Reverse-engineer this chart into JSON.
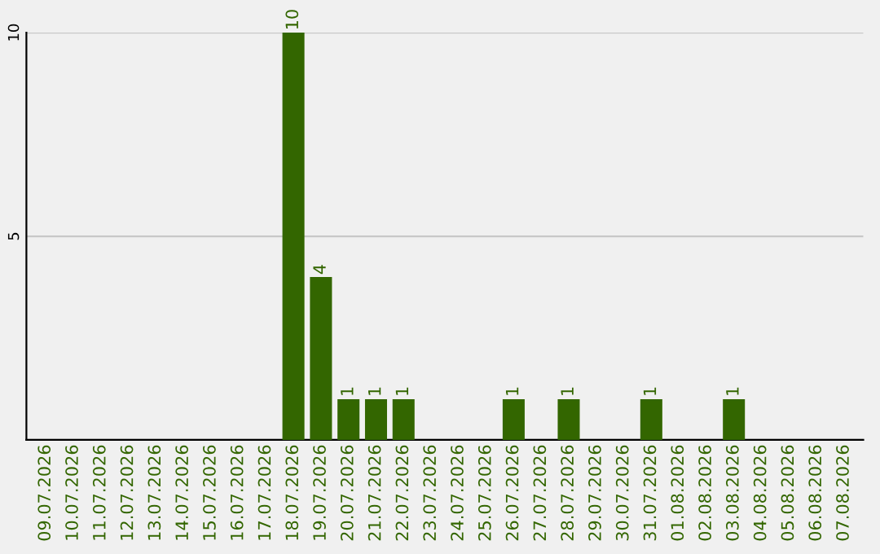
{
  "chart_data": {
    "type": "bar",
    "categories": [
      "09.07.2026",
      "10.07.2026",
      "11.07.2026",
      "12.07.2026",
      "13.07.2026",
      "14.07.2026",
      "15.07.2026",
      "16.07.2026",
      "17.07.2026",
      "18.07.2026",
      "19.07.2026",
      "20.07.2026",
      "21.07.2026",
      "22.07.2026",
      "23.07.2026",
      "24.07.2026",
      "25.07.2026",
      "26.07.2026",
      "27.07.2026",
      "28.07.2026",
      "29.07.2026",
      "30.07.2026",
      "31.07.2026",
      "01.08.2026",
      "02.08.2026",
      "03.08.2026",
      "04.08.2026",
      "05.08.2026",
      "06.08.2026",
      "07.08.2026"
    ],
    "values": [
      0,
      0,
      0,
      0,
      0,
      0,
      0,
      0,
      0,
      10,
      4,
      1,
      1,
      1,
      0,
      0,
      0,
      1,
      0,
      1,
      0,
      0,
      1,
      0,
      0,
      1,
      0,
      0,
      0,
      0
    ],
    "value_labels": [
      null,
      null,
      null,
      null,
      null,
      null,
      null,
      null,
      null,
      "10",
      "4",
      "1",
      "1",
      "1",
      null,
      null,
      null,
      "1",
      null,
      "1",
      null,
      null,
      "1",
      null,
      null,
      "1",
      null,
      null,
      null,
      null
    ],
    "color": "#336600",
    "ylim": [
      0,
      10
    ],
    "yticks": [
      {
        "value": 0,
        "label": null
      },
      5,
      10
    ],
    "grid": "y",
    "legend": false
  }
}
